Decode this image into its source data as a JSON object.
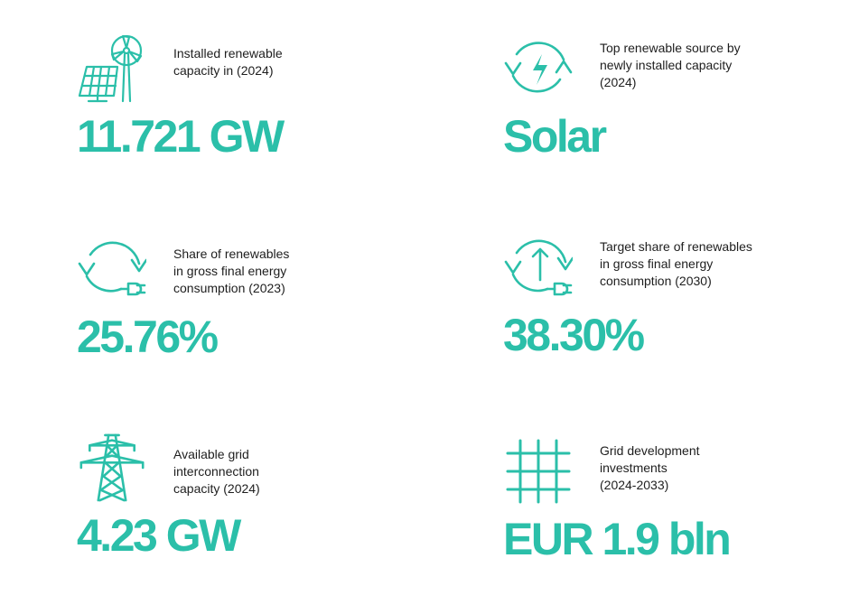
{
  "accent_color": "#2bbfa9",
  "text_color": "#1e1e1e",
  "stats": [
    {
      "icon": "solar-wind-icon",
      "label": "Installed renewable\ncapacity in (2024)",
      "value": "11.721 GW"
    },
    {
      "icon": "energy-cycle-icon",
      "label": "Top renewable source by\nnewly installed capacity\n(2024)",
      "value": "Solar"
    },
    {
      "icon": "renewable-plug-icon",
      "label": "Share of renewables\nin gross final energy\nconsumption (2023)",
      "value": "25.76%"
    },
    {
      "icon": "target-plug-icon",
      "label": "Target share of renewables\nin gross final energy\nconsumption (2030)",
      "value": "38.30%"
    },
    {
      "icon": "transmission-tower-icon",
      "label": "Available grid\ninterconnection\ncapacity (2024)",
      "value": "4.23 GW"
    },
    {
      "icon": "grid-icon",
      "label": "Grid development\ninvestments\n(2024-2033)",
      "value": "EUR 1.9 bln"
    }
  ]
}
